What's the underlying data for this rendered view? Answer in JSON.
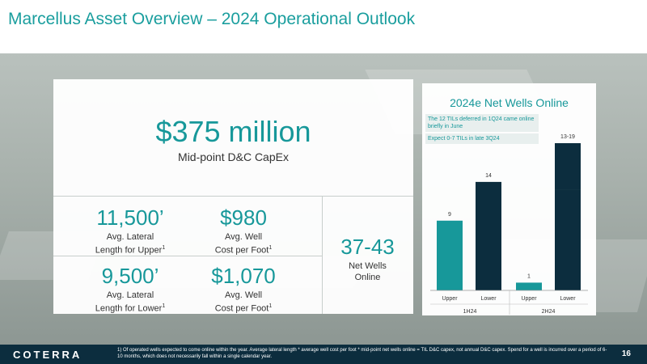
{
  "title": "Marcellus Asset Overview – 2024 Operational Outlook",
  "capex": {
    "value": "$375 million",
    "label": "Mid-point D&C CapEx"
  },
  "metrics": [
    {
      "value": "11,500’",
      "label_line1": "Avg. Lateral",
      "label_line2": "Length for Upper",
      "sup": "1"
    },
    {
      "value": "$980",
      "label_line1": "Avg. Well",
      "label_line2": "Cost per Foot",
      "sup": "1"
    },
    {
      "value": "9,500’",
      "label_line1": "Avg. Lateral",
      "label_line2": "Length for Lower",
      "sup": "1"
    },
    {
      "value": "$1,070",
      "label_line1": "Avg. Well",
      "label_line2": "Cost per Foot",
      "sup": "1"
    }
  ],
  "net_wells": {
    "value": "37-43",
    "label_line1": "Net Wells",
    "label_line2": "Online"
  },
  "chart_notes": [
    "The 12 TILs deferred in 1Q24 came online briefly in June",
    "Expect 0-7 TILs in late 3Q24"
  ],
  "chart_data": {
    "type": "bar",
    "title": "2024e Net Wells Online",
    "categories": [
      "Upper",
      "Lower",
      "Upper",
      "Lower"
    ],
    "groups": [
      "1H24",
      "2H24"
    ],
    "values": [
      9,
      14,
      1,
      16
    ],
    "value_labels": [
      "9",
      "14",
      "1",
      "13-19"
    ],
    "range": [
      null,
      null,
      null,
      [
        13,
        19
      ]
    ],
    "colors": [
      "#17989a",
      "#0c2d3e",
      "#17989a",
      "#0c2d3e"
    ],
    "ylim": [
      0,
      19
    ],
    "grid": false
  },
  "footer": {
    "logo": "COTERRA",
    "footnote": "1) Of operated wells expected to come online within the year. Average lateral length * average well cost per foot * mid-point net wells online = TIL D&C capex, not annual D&C capex. Spend for a well is incurred over a period of 6-10 months, which does not necessarily fall within a single calendar year.",
    "page": "16"
  }
}
